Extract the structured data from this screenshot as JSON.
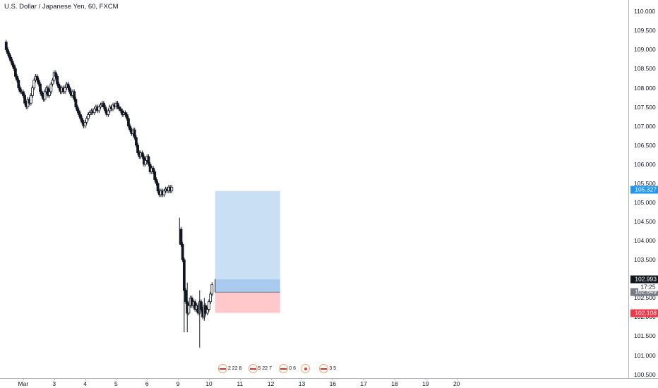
{
  "header": {
    "title": "U.S. Dollar / Japanese Yen, 60, FXCM"
  },
  "colors": {
    "up": "#131722",
    "down": "#131722",
    "profit": "#c9dff4",
    "loss": "#ffc9cc",
    "entry_band": "#a9cbef",
    "price_blue": "#2196f3",
    "price_red": "#f23645",
    "price_black": "#131722",
    "price_gray": "#787b86"
  },
  "chart_data": {
    "type": "candlestick",
    "title": "U.S. Dollar / Japanese Yen, 60, FXCM",
    "ylim": [
      100.4,
      110.3
    ],
    "xlim": [
      -0.15,
      20.15
    ],
    "y_ticks": [
      "110.000",
      "109.500",
      "109.000",
      "108.500",
      "108.000",
      "107.500",
      "107.000",
      "106.500",
      "106.000",
      "105.500",
      "105.000",
      "104.500",
      "104.000",
      "103.500",
      "103.000",
      "102.500",
      "102.000",
      "101.500",
      "101.000",
      "100.500"
    ],
    "y_tick_values": [
      110.0,
      109.5,
      109.0,
      108.5,
      108.0,
      107.5,
      107.0,
      106.5,
      106.0,
      105.5,
      105.0,
      104.5,
      104.0,
      103.5,
      103.0,
      102.5,
      102.0,
      101.5,
      101.0,
      100.5
    ],
    "x_ticks": [
      "Mar",
      "3",
      "4",
      "5",
      "6",
      "9",
      "10",
      "11",
      "12",
      "13",
      "16",
      "17",
      "18",
      "19",
      "20"
    ],
    "x_tick_values": [
      0.6,
      1.6,
      2.6,
      3.6,
      4.6,
      5.6,
      6.6,
      7.6,
      8.6,
      9.6,
      10.6,
      11.6,
      12.6,
      13.6,
      14.6
    ],
    "close_path": [
      [
        0.0,
        109.2
      ],
      [
        0.05,
        109.0
      ],
      [
        0.1,
        108.9
      ],
      [
        0.15,
        108.8
      ],
      [
        0.2,
        108.7
      ],
      [
        0.25,
        108.6
      ],
      [
        0.3,
        108.5
      ],
      [
        0.35,
        108.3
      ],
      [
        0.4,
        108.2
      ],
      [
        0.45,
        108.0
      ],
      [
        0.5,
        107.9
      ],
      [
        0.55,
        107.9
      ],
      [
        0.6,
        107.8
      ],
      [
        0.65,
        107.6
      ],
      [
        0.7,
        107.5
      ],
      [
        0.75,
        107.7
      ],
      [
        0.8,
        107.6
      ],
      [
        0.85,
        107.8
      ],
      [
        0.9,
        108.0
      ],
      [
        0.95,
        108.2
      ],
      [
        1.0,
        108.3
      ],
      [
        1.05,
        108.2
      ],
      [
        1.1,
        108.1
      ],
      [
        1.15,
        107.9
      ],
      [
        1.2,
        107.8
      ],
      [
        1.25,
        107.7
      ],
      [
        1.3,
        107.9
      ],
      [
        1.35,
        108.0
      ],
      [
        1.4,
        107.8
      ],
      [
        1.45,
        107.9
      ],
      [
        1.5,
        108.1
      ],
      [
        1.55,
        108.2
      ],
      [
        1.6,
        108.4
      ],
      [
        1.65,
        108.3
      ],
      [
        1.7,
        108.1
      ],
      [
        1.75,
        108.0
      ],
      [
        1.8,
        107.9
      ],
      [
        1.85,
        108.0
      ],
      [
        1.9,
        107.9
      ],
      [
        1.95,
        108.0
      ],
      [
        2.0,
        108.1
      ],
      [
        2.05,
        108.0
      ],
      [
        2.1,
        107.9
      ],
      [
        2.15,
        107.8
      ],
      [
        2.2,
        107.9
      ],
      [
        2.25,
        107.7
      ],
      [
        2.3,
        107.5
      ],
      [
        2.35,
        107.4
      ],
      [
        2.4,
        107.3
      ],
      [
        2.45,
        107.2
      ],
      [
        2.5,
        107.1
      ],
      [
        2.55,
        107.0
      ],
      [
        2.6,
        107.1
      ],
      [
        2.65,
        107.2
      ],
      [
        2.7,
        107.3
      ],
      [
        2.75,
        107.35
      ],
      [
        2.8,
        107.4
      ],
      [
        2.85,
        107.35
      ],
      [
        2.9,
        107.45
      ],
      [
        2.95,
        107.5
      ],
      [
        3.0,
        107.4
      ],
      [
        3.05,
        107.5
      ],
      [
        3.1,
        107.55
      ],
      [
        3.15,
        107.6
      ],
      [
        3.2,
        107.5
      ],
      [
        3.25,
        107.4
      ],
      [
        3.3,
        107.3
      ],
      [
        3.35,
        107.4
      ],
      [
        3.4,
        107.5
      ],
      [
        3.45,
        107.45
      ],
      [
        3.5,
        107.55
      ],
      [
        3.55,
        107.5
      ],
      [
        3.6,
        107.6
      ],
      [
        3.65,
        107.5
      ],
      [
        3.7,
        107.45
      ],
      [
        3.75,
        107.4
      ],
      [
        3.8,
        107.3
      ],
      [
        3.85,
        107.35
      ],
      [
        3.9,
        107.3
      ],
      [
        3.95,
        107.2
      ],
      [
        4.0,
        107.0
      ],
      [
        4.05,
        106.9
      ],
      [
        4.1,
        106.8
      ],
      [
        4.15,
        106.9
      ],
      [
        4.2,
        106.7
      ],
      [
        4.25,
        106.5
      ],
      [
        4.3,
        106.3
      ],
      [
        4.35,
        106.2
      ],
      [
        4.4,
        106.3
      ],
      [
        4.45,
        106.2
      ],
      [
        4.5,
        106.0
      ],
      [
        4.55,
        106.1
      ],
      [
        4.6,
        106.2
      ],
      [
        4.65,
        106.0
      ],
      [
        4.7,
        105.8
      ],
      [
        4.75,
        105.9
      ],
      [
        4.8,
        105.8
      ],
      [
        4.85,
        105.6
      ],
      [
        4.9,
        105.5
      ],
      [
        4.95,
        105.3
      ],
      [
        5.0,
        105.2
      ],
      [
        5.05,
        105.3
      ],
      [
        5.1,
        105.2
      ],
      [
        5.15,
        105.3
      ],
      [
        5.2,
        105.35
      ],
      [
        5.25,
        105.3
      ],
      [
        5.3,
        105.4
      ],
      [
        5.35,
        105.3
      ],
      [
        5.4,
        105.4
      ],
      [
        5.65,
        104.3
      ],
      [
        5.7,
        103.9
      ],
      [
        5.75,
        103.5
      ],
      [
        5.8,
        102.7
      ],
      [
        5.85,
        102.4
      ],
      [
        5.9,
        102.1
      ],
      [
        5.95,
        102.3
      ],
      [
        6.0,
        102.5
      ],
      [
        6.05,
        102.3
      ],
      [
        6.1,
        102.4
      ],
      [
        6.15,
        102.2
      ],
      [
        6.2,
        102.3
      ],
      [
        6.25,
        102.1
      ],
      [
        6.3,
        102.4
      ],
      [
        6.35,
        102.2
      ],
      [
        6.4,
        102.0
      ],
      [
        6.45,
        102.3
      ],
      [
        6.5,
        102.1
      ],
      [
        6.55,
        102.2
      ],
      [
        6.6,
        102.4
      ],
      [
        6.65,
        102.6
      ],
      [
        6.7,
        102.85
      ]
    ],
    "wicks": [
      [
        5.65,
        104.6,
        103.9
      ],
      [
        5.8,
        103.4,
        101.6
      ],
      [
        5.9,
        102.9,
        101.6
      ],
      [
        6.3,
        102.7,
        101.2
      ],
      [
        6.45,
        102.5,
        101.9
      ]
    ],
    "position": {
      "start_x": 6.8,
      "end_x": 8.9,
      "target": 105.3,
      "entry": 102.649,
      "current": 102.993,
      "stop": 102.108
    },
    "price_labels": [
      {
        "value": 105.327,
        "text": "105.327",
        "color": "#2196f3"
      },
      {
        "value": 102.993,
        "text": "102.993",
        "color": "#131722"
      },
      {
        "value": 102.649,
        "text": "102.649",
        "color": "#787b86"
      },
      {
        "value": 102.108,
        "text": "102.108",
        "color": "#f23645"
      }
    ],
    "timer": {
      "text": "17:25"
    },
    "events": [
      {
        "x": 7.08,
        "text": "2 22 8",
        "kind": "us"
      },
      {
        "x": 8.05,
        "text": "5 22 7",
        "kind": "us"
      },
      {
        "x": 9.05,
        "text": "0 6",
        "kind": "us"
      },
      {
        "x": 9.75,
        "text": "",
        "kind": "jp"
      },
      {
        "x": 10.35,
        "text": "3 5",
        "kind": "us"
      }
    ]
  }
}
